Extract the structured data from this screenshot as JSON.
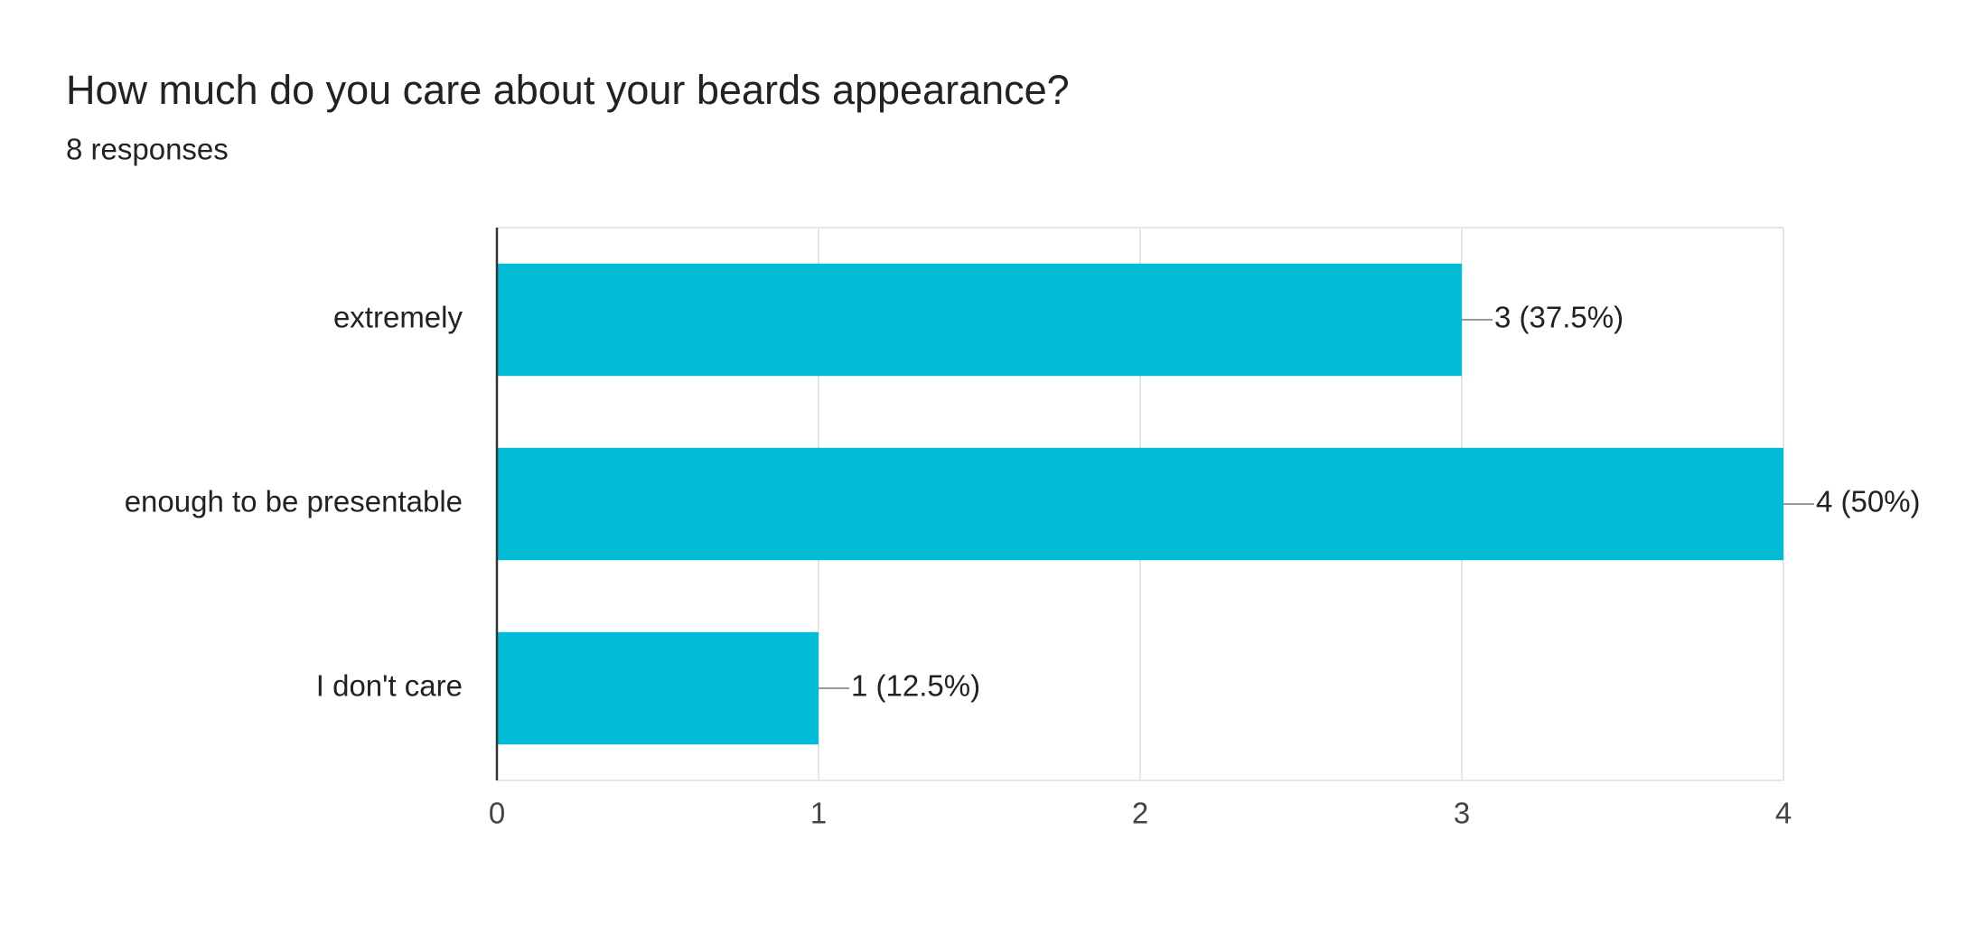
{
  "chart_data": {
    "type": "bar",
    "orientation": "horizontal",
    "title": "How much do you care about your beards appearance?",
    "subtitle": "8 responses",
    "categories": [
      "extremely",
      "enough to be presentable",
      "I don't care"
    ],
    "values": [
      3,
      4,
      1
    ],
    "value_labels": [
      "3 (37.5%)",
      "4 (50%)",
      "1 (12.5%)"
    ],
    "color": "#00bcd4",
    "xlim": [
      0,
      4
    ],
    "xticks": [
      0,
      1,
      2,
      3,
      4
    ],
    "grid": true
  }
}
